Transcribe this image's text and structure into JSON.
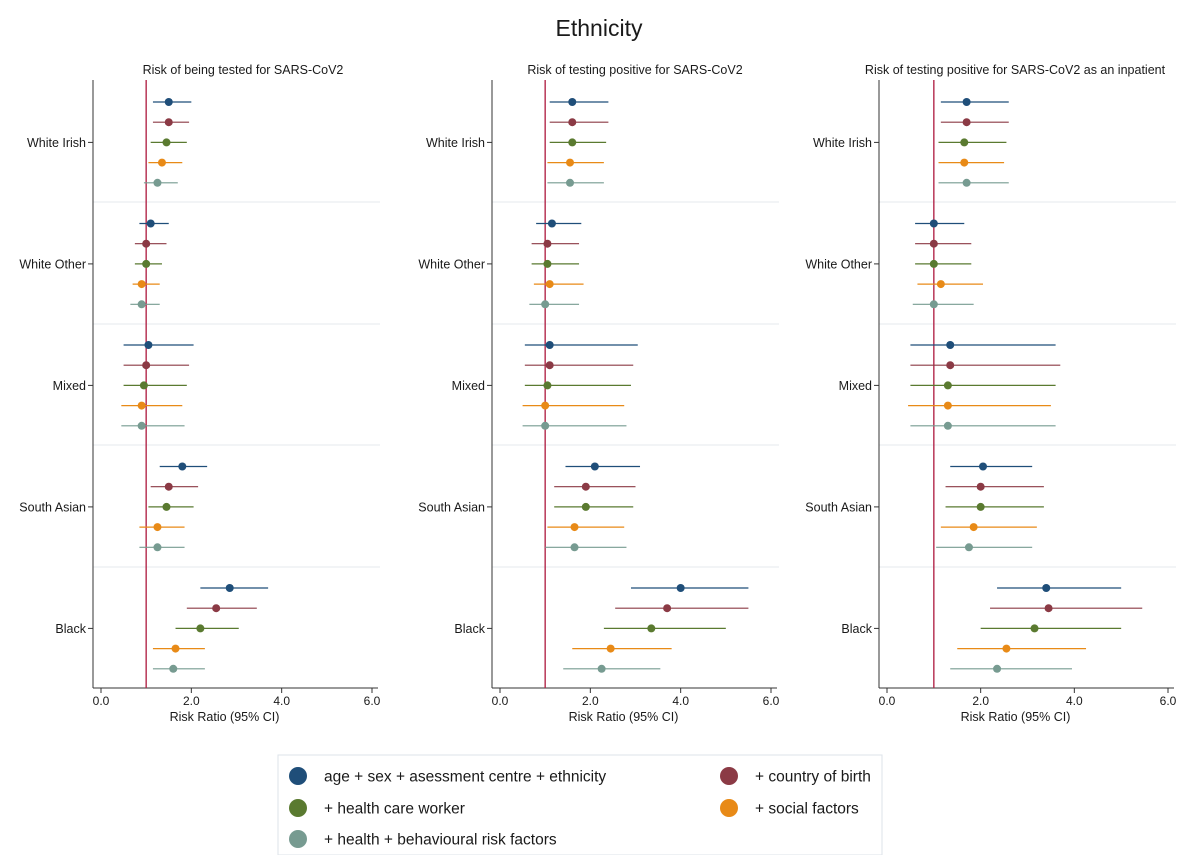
{
  "title": "Ethnicity",
  "legend": {
    "entries": [
      "age + sex + asessment centre + ethnicity",
      "+ country of birth",
      "+ health care worker",
      "+ social factors",
      "+ health + behavioural risk factors"
    ]
  },
  "chart_data": [
    {
      "type": "forest",
      "title": "Risk of being tested for SARS-CoV2",
      "xlabel": "Risk Ratio (95% CI)",
      "xlim": [
        0,
        6
      ],
      "xticks": [
        "0.0",
        "2.0",
        "4.0",
        "6.0"
      ],
      "reference_line": 1.0,
      "categories": [
        "White Irish",
        "White Other",
        "Mixed",
        "South Asian",
        "Black"
      ],
      "series": [
        {
          "name": "age + sex + asessment centre + ethnicity",
          "color": "#1f4e79",
          "estimates": [
            1.5,
            1.1,
            1.05,
            1.8,
            2.85
          ],
          "lower": [
            1.15,
            0.85,
            0.5,
            1.3,
            2.2
          ],
          "upper": [
            2.0,
            1.5,
            2.05,
            2.35,
            3.7
          ]
        },
        {
          "name": "+ country of birth",
          "color": "#8b3a45",
          "estimates": [
            1.5,
            1.0,
            1.0,
            1.5,
            2.55
          ],
          "lower": [
            1.15,
            0.75,
            0.5,
            1.1,
            1.9
          ],
          "upper": [
            1.95,
            1.45,
            1.95,
            2.15,
            3.45
          ]
        },
        {
          "name": "+ health care worker",
          "color": "#5a7a30",
          "estimates": [
            1.45,
            1.0,
            0.95,
            1.45,
            2.2
          ],
          "lower": [
            1.1,
            0.75,
            0.5,
            1.05,
            1.65
          ],
          "upper": [
            1.9,
            1.35,
            1.9,
            2.05,
            3.05
          ]
        },
        {
          "name": "+ social factors",
          "color": "#e88a17",
          "estimates": [
            1.35,
            0.9,
            0.9,
            1.25,
            1.65
          ],
          "lower": [
            1.05,
            0.7,
            0.45,
            0.85,
            1.15
          ],
          "upper": [
            1.8,
            1.3,
            1.8,
            1.85,
            2.3
          ]
        },
        {
          "name": "+ health + behavioural risk factors",
          "color": "#779b91",
          "estimates": [
            1.25,
            0.9,
            0.9,
            1.25,
            1.6
          ],
          "lower": [
            0.95,
            0.65,
            0.45,
            0.85,
            1.15
          ],
          "upper": [
            1.7,
            1.3,
            1.85,
            1.85,
            2.3
          ]
        }
      ]
    },
    {
      "type": "forest",
      "title": "Risk of testing positive for SARS-CoV2",
      "xlabel": "Risk Ratio (95% CI)",
      "xlim": [
        0,
        6
      ],
      "xticks": [
        "0.0",
        "2.0",
        "4.0",
        "6.0"
      ],
      "reference_line": 1.0,
      "categories": [
        "White Irish",
        "White Other",
        "Mixed",
        "South Asian",
        "Black"
      ],
      "series": [
        {
          "name": "age + sex + asessment centre + ethnicity",
          "color": "#1f4e79",
          "estimates": [
            1.6,
            1.15,
            1.1,
            2.1,
            4.0
          ],
          "lower": [
            1.1,
            0.8,
            0.55,
            1.45,
            2.9
          ],
          "upper": [
            2.4,
            1.8,
            3.05,
            3.1,
            5.5
          ]
        },
        {
          "name": "+ country of birth",
          "color": "#8b3a45",
          "estimates": [
            1.6,
            1.05,
            1.1,
            1.9,
            3.7
          ],
          "lower": [
            1.1,
            0.7,
            0.55,
            1.2,
            2.55
          ],
          "upper": [
            2.4,
            1.75,
            2.95,
            3.0,
            5.5
          ]
        },
        {
          "name": "+ health care worker",
          "color": "#5a7a30",
          "estimates": [
            1.6,
            1.05,
            1.05,
            1.9,
            3.35
          ],
          "lower": [
            1.1,
            0.7,
            0.55,
            1.2,
            2.3
          ],
          "upper": [
            2.35,
            1.75,
            2.9,
            2.95,
            5.0
          ]
        },
        {
          "name": "+ social factors",
          "color": "#e88a17",
          "estimates": [
            1.55,
            1.1,
            1.0,
            1.65,
            2.45
          ],
          "lower": [
            1.05,
            0.75,
            0.5,
            1.05,
            1.6
          ],
          "upper": [
            2.3,
            1.85,
            2.75,
            2.75,
            3.8
          ]
        },
        {
          "name": "+ health + behavioural risk factors",
          "color": "#779b91",
          "estimates": [
            1.55,
            1.0,
            1.0,
            1.65,
            2.25
          ],
          "lower": [
            1.05,
            0.65,
            0.5,
            1.0,
            1.4
          ],
          "upper": [
            2.3,
            1.75,
            2.8,
            2.8,
            3.55
          ]
        }
      ]
    },
    {
      "type": "forest",
      "title": "Risk of testing positive for SARS-CoV2 as an inpatient",
      "xlabel": "Risk Ratio (95% CI)",
      "xlim": [
        0,
        6
      ],
      "xticks": [
        "0.0",
        "2.0",
        "4.0",
        "6.0"
      ],
      "reference_line": 1.0,
      "categories": [
        "White Irish",
        "White Other",
        "Mixed",
        "South Asian",
        "Black"
      ],
      "series": [
        {
          "name": "age + sex + asessment centre + ethnicity",
          "color": "#1f4e79",
          "estimates": [
            1.7,
            1.0,
            1.35,
            2.05,
            3.4
          ],
          "lower": [
            1.15,
            0.6,
            0.5,
            1.35,
            2.35
          ],
          "upper": [
            2.6,
            1.65,
            3.6,
            3.1,
            5.0
          ]
        },
        {
          "name": "+ country of birth",
          "color": "#8b3a45",
          "estimates": [
            1.7,
            1.0,
            1.35,
            2.0,
            3.45
          ],
          "lower": [
            1.15,
            0.6,
            0.5,
            1.25,
            2.2
          ],
          "upper": [
            2.6,
            1.8,
            3.7,
            3.35,
            5.45
          ]
        },
        {
          "name": "+ health care worker",
          "color": "#5a7a30",
          "estimates": [
            1.65,
            1.0,
            1.3,
            2.0,
            3.15
          ],
          "lower": [
            1.1,
            0.6,
            0.5,
            1.25,
            2.0
          ],
          "upper": [
            2.55,
            1.8,
            3.6,
            3.35,
            5.0
          ]
        },
        {
          "name": "+ social factors",
          "color": "#e88a17",
          "estimates": [
            1.65,
            1.15,
            1.3,
            1.85,
            2.55
          ],
          "lower": [
            1.1,
            0.65,
            0.45,
            1.15,
            1.5
          ],
          "upper": [
            2.5,
            2.05,
            3.5,
            3.2,
            4.25
          ]
        },
        {
          "name": "+ health + behavioural risk factors",
          "color": "#779b91",
          "estimates": [
            1.7,
            1.0,
            1.3,
            1.75,
            2.35
          ],
          "lower": [
            1.1,
            0.55,
            0.5,
            1.05,
            1.35
          ],
          "upper": [
            2.6,
            1.85,
            3.6,
            3.1,
            3.95
          ]
        }
      ]
    }
  ]
}
